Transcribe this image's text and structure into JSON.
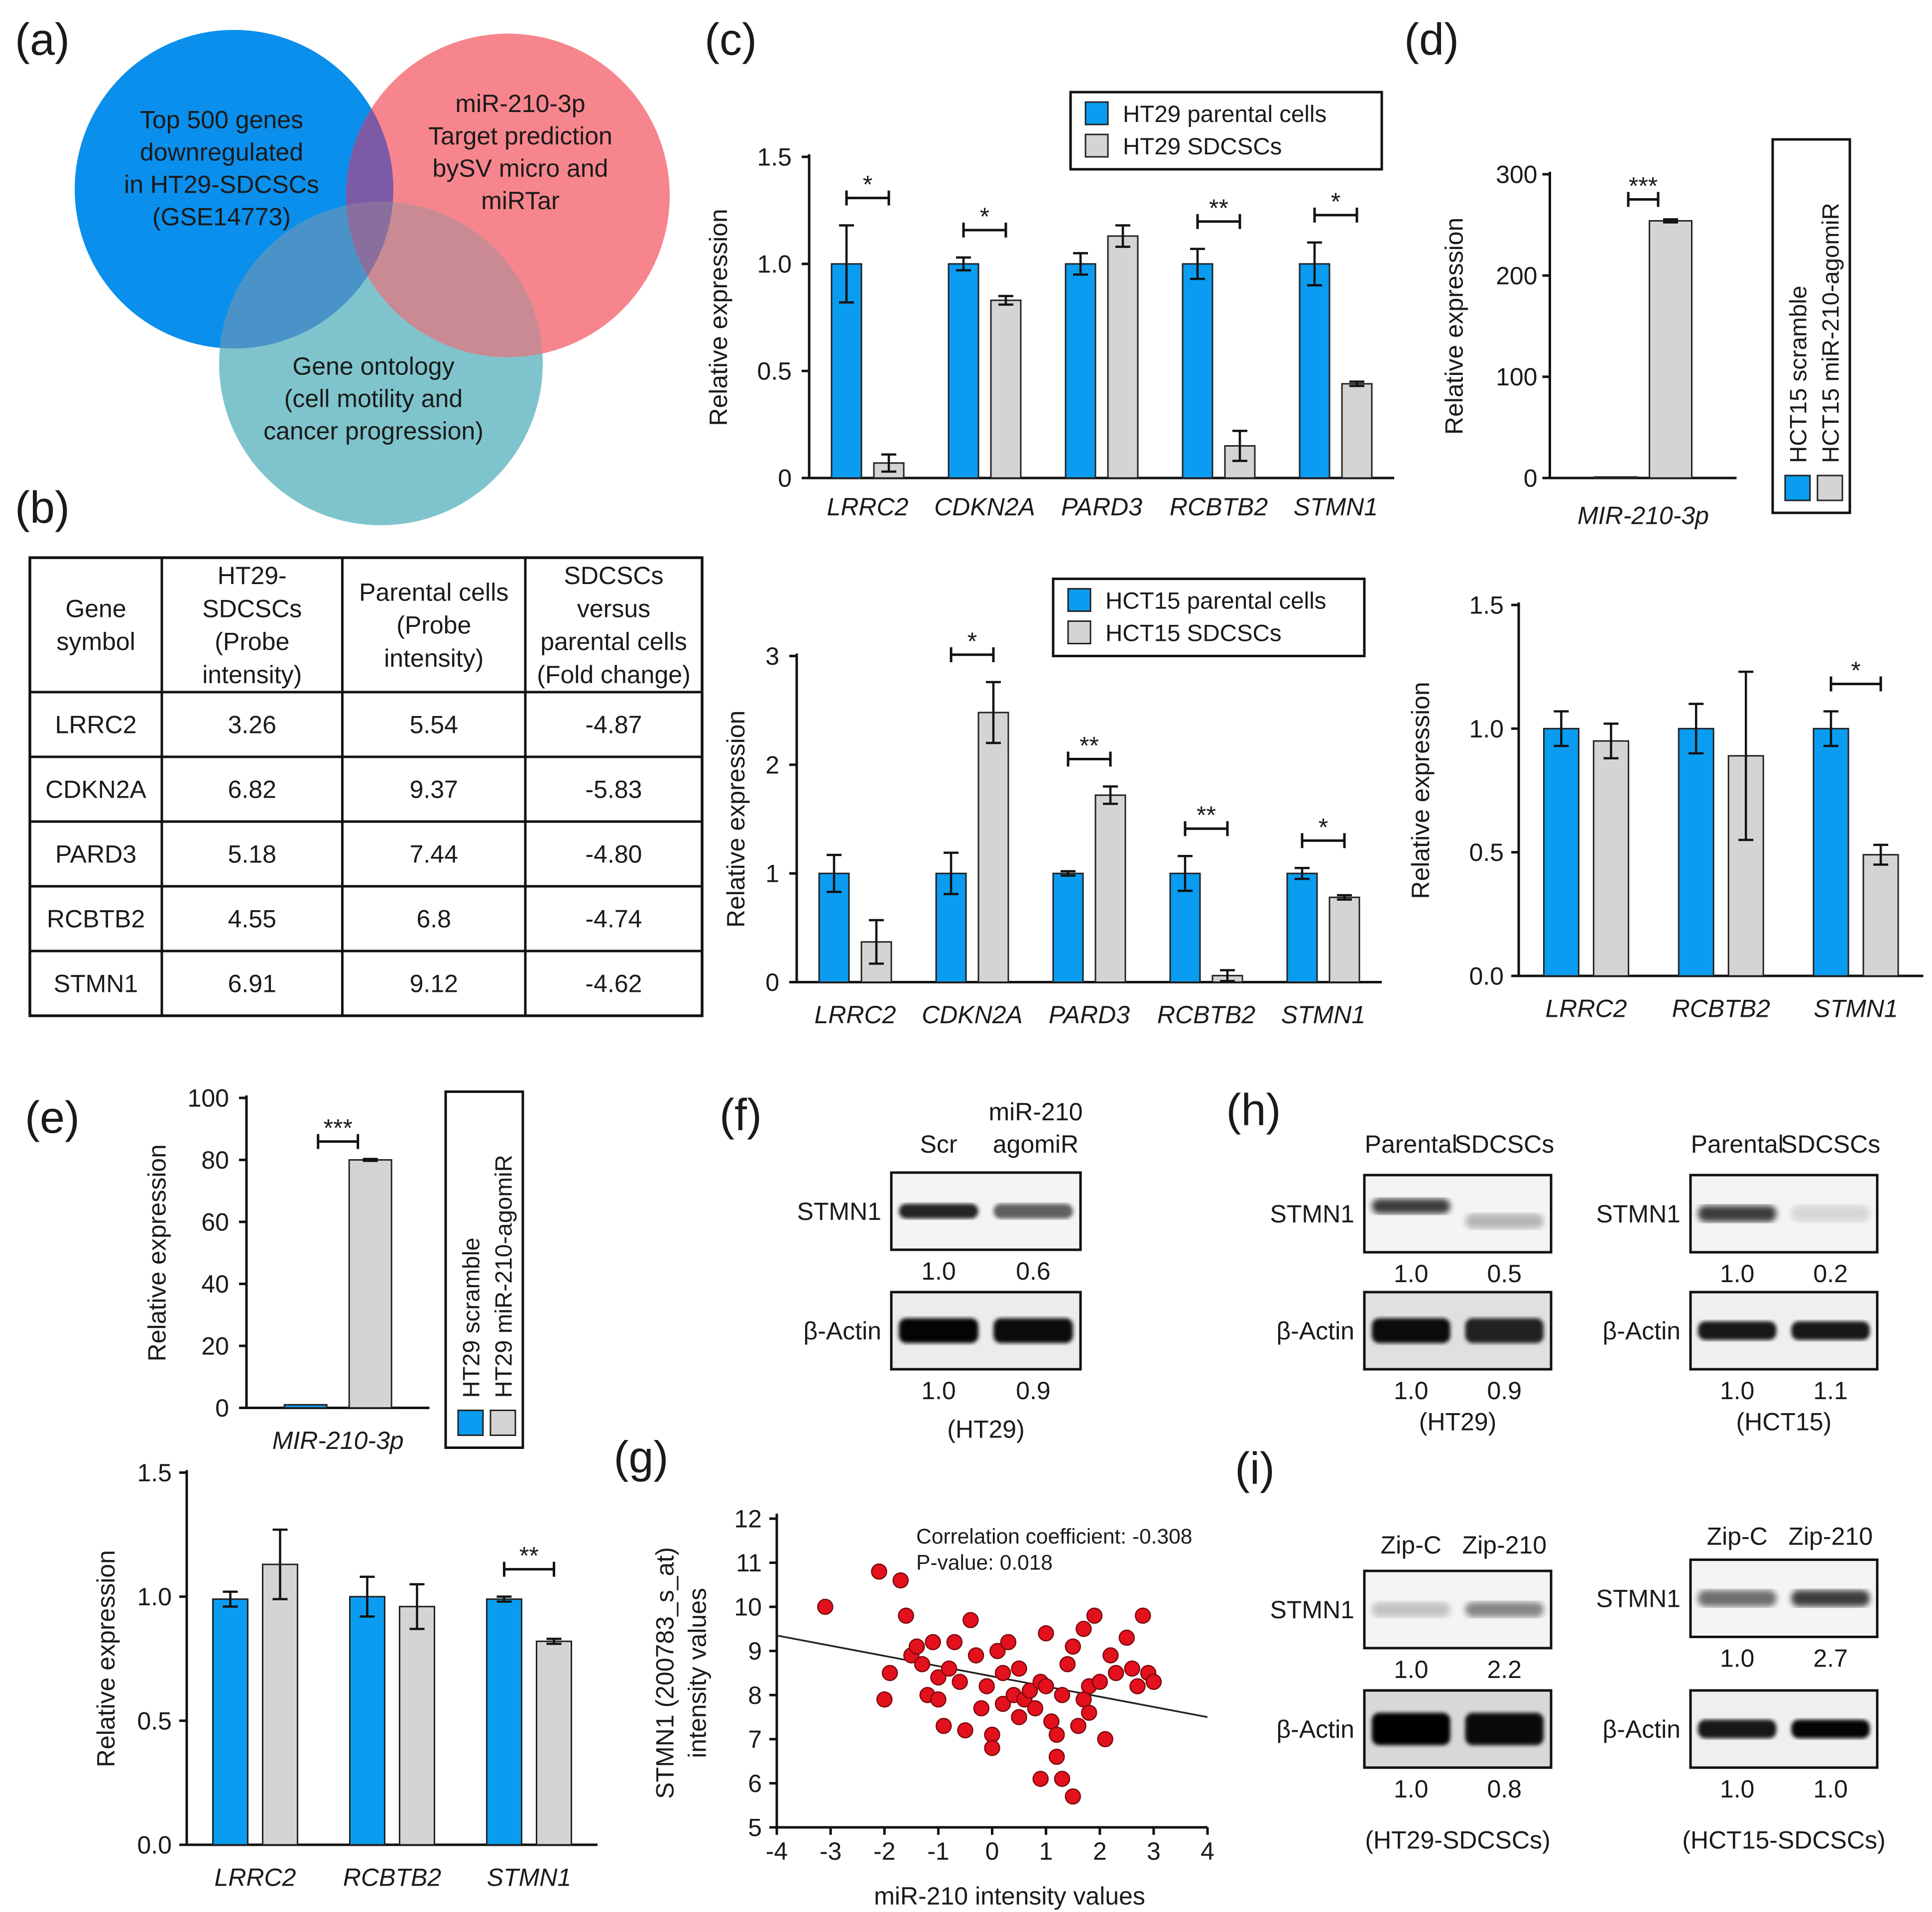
{
  "colors": {
    "blue": "#0a9cf0",
    "gray": "#d4d4d4",
    "red": "#e3111e",
    "venn_blue": "#0a8fec",
    "venn_pink": "#f7858d",
    "venn_teal": "#7fc4cc",
    "venn_purple": "#7d5aa6",
    "venn_darkpink": "#c98a93"
  },
  "panels": {
    "a": {
      "letter": "(a)",
      "circles": [
        {
          "lines": [
            "Top 500 genes",
            "downregulated",
            "in HT29-SDCSCs",
            "(GSE14773)"
          ]
        },
        {
          "lines": [
            "miR-210-3p",
            "Target prediction",
            "bySV micro and",
            "miRTar"
          ]
        },
        {
          "lines": [
            "Gene ontology",
            "(cell motility and",
            "cancer progression)"
          ]
        }
      ]
    },
    "b": {
      "letter": "(b)",
      "headers": [
        [
          "Gene",
          "symbol"
        ],
        [
          "HT29-",
          "SDCSCs",
          "(Probe",
          "intensity)"
        ],
        [
          "Parental cells",
          "(Probe",
          "intensity)"
        ],
        [
          "SDCSCs",
          "versus",
          "parental cells",
          "(Fold change)"
        ]
      ],
      "rows": [
        [
          "LRRC2",
          "3.26",
          "5.54",
          "-4.87"
        ],
        [
          "CDKN2A",
          "6.82",
          "9.37",
          "-5.83"
        ],
        [
          "PARD3",
          "5.18",
          "7.44",
          "-4.80"
        ],
        [
          "RCBTB2",
          "4.55",
          "6.8",
          "-4.74"
        ],
        [
          "STMN1",
          "6.91",
          "9.12",
          "-4.62"
        ]
      ]
    },
    "c": {
      "letter": "(c)"
    },
    "d": {
      "letter": "(d)"
    },
    "e": {
      "letter": "(e)"
    },
    "f": {
      "letter": "(f)",
      "col1": "Scr",
      "col2a": "miR-210",
      "col2b": "agomiR",
      "row1": "STMN1",
      "row1_vals": [
        "1.0",
        "0.6"
      ],
      "row2": "β-Actin",
      "row2_vals": [
        "1.0",
        "0.9"
      ],
      "cell": "(HT29)"
    },
    "g": {
      "letter": "(g)"
    },
    "h": {
      "letter": "(h)",
      "left": {
        "col1": "Parental",
        "col2": "SDCSCs",
        "row1": "STMN1",
        "row1_vals": [
          "1.0",
          "0.5"
        ],
        "row2": "β-Actin",
        "row2_vals": [
          "1.0",
          "0.9"
        ],
        "cell": "(HT29)"
      },
      "right": {
        "col1": "Parental",
        "col2": "SDCSCs",
        "row1": "STMN1",
        "row1_vals": [
          "1.0",
          "0.2"
        ],
        "row2": "β-Actin",
        "row2_vals": [
          "1.0",
          "1.1"
        ],
        "cell": "(HCT15)"
      }
    },
    "i": {
      "letter": "(i)",
      "left": {
        "col1": "Zip-C",
        "col2": "Zip-210",
        "row1": "STMN1",
        "row1_vals": [
          "1.0",
          "2.2"
        ],
        "row2": "β-Actin",
        "row2_vals": [
          "1.0",
          "0.8"
        ],
        "cell": "(HT29-SDCSCs)"
      },
      "right": {
        "col1": "Zip-C",
        "col2": "Zip-210",
        "row1": "STMN1",
        "row1_vals": [
          "1.0",
          "2.7"
        ],
        "row2": "β-Actin",
        "row2_vals": [
          "1.0",
          "1.0"
        ],
        "cell": "(HCT15-SDCSCs)"
      }
    }
  },
  "chart_data": [
    {
      "id": "c_top",
      "type": "bar",
      "ylabel": "Relative expression",
      "ylim": [
        0,
        1.5
      ],
      "yticks": [
        0,
        0.5,
        1.0,
        1.5
      ],
      "ytick_labels": [
        "0",
        "0.5",
        "1.0",
        "1.5"
      ],
      "categories": [
        "LRRC2",
        "CDKN2A",
        "PARD3",
        "RCBTB2",
        "STMN1"
      ],
      "series": [
        {
          "name": "HT29 parental cells",
          "color": "blue",
          "values": [
            1.0,
            1.0,
            1.0,
            1.0,
            1.0
          ],
          "errors": [
            0.18,
            0.03,
            0.05,
            0.07,
            0.1
          ]
        },
        {
          "name": "HT29 SDCSCs",
          "color": "gray",
          "values": [
            0.07,
            0.83,
            1.13,
            0.15,
            0.44
          ],
          "errors": [
            0.04,
            0.02,
            0.05,
            0.07,
            0.01
          ]
        }
      ],
      "significance": [
        "*",
        "*",
        "",
        "**",
        "*"
      ]
    },
    {
      "id": "c_bottom",
      "type": "bar",
      "ylabel": "Relative expression",
      "ylim": [
        0,
        3
      ],
      "yticks": [
        0,
        1,
        2,
        3
      ],
      "ytick_labels": [
        "0",
        "1",
        "2",
        "3"
      ],
      "categories": [
        "LRRC2",
        "CDKN2A",
        "PARD3",
        "RCBTB2",
        "STMN1"
      ],
      "series": [
        {
          "name": "HCT15 parental cells",
          "color": "blue",
          "values": [
            1.0,
            1.0,
            1.0,
            1.0,
            1.0
          ],
          "errors": [
            0.17,
            0.19,
            0.02,
            0.16,
            0.05
          ]
        },
        {
          "name": "HCT15 SDCSCs",
          "color": "gray",
          "values": [
            0.37,
            2.48,
            1.72,
            0.06,
            0.78
          ],
          "errors": [
            0.2,
            0.28,
            0.08,
            0.05,
            0.02
          ]
        }
      ],
      "significance": [
        "",
        "*",
        "**",
        "**",
        "*"
      ]
    },
    {
      "id": "d_top",
      "type": "bar",
      "ylabel": "Relative expression",
      "ylim": [
        0,
        300
      ],
      "yticks": [
        0,
        100,
        200,
        300
      ],
      "ytick_labels": [
        "0",
        "100",
        "200",
        "300"
      ],
      "categories": [
        "MIR-210-3p"
      ],
      "series": [
        {
          "name": "HCT15 scramble",
          "color": "blue",
          "values": [
            1
          ],
          "errors": [
            0
          ]
        },
        {
          "name": "HCT15 miR-210-agomiR",
          "color": "gray",
          "values": [
            254
          ],
          "errors": [
            1.5
          ]
        }
      ],
      "significance": [
        "***"
      ]
    },
    {
      "id": "d_bottom",
      "type": "bar",
      "ylabel": "Relative expression",
      "ylim": [
        0,
        1.5
      ],
      "yticks": [
        0,
        0.5,
        1.0,
        1.5
      ],
      "ytick_labels": [
        "0.0",
        "0.5",
        "1.0",
        "1.5"
      ],
      "categories": [
        "LRRC2",
        "RCBTB2",
        "STMN1"
      ],
      "series": [
        {
          "name": "HCT15 scramble",
          "color": "blue",
          "values": [
            1.0,
            1.0,
            1.0
          ],
          "errors": [
            0.07,
            0.1,
            0.07
          ]
        },
        {
          "name": "HCT15 miR-210-agomiR",
          "color": "gray",
          "values": [
            0.95,
            0.89,
            0.49
          ],
          "errors": [
            0.07,
            0.34,
            0.04
          ]
        }
      ],
      "significance": [
        "",
        "",
        "*"
      ]
    },
    {
      "id": "e_top",
      "type": "bar",
      "ylabel": "Relative expression",
      "ylim": [
        0,
        100
      ],
      "yticks": [
        0,
        20,
        40,
        60,
        80,
        100
      ],
      "ytick_labels": [
        "0",
        "20",
        "40",
        "60",
        "80",
        "100"
      ],
      "categories": [
        "MIR-210-3p"
      ],
      "series": [
        {
          "name": "HT29 scramble",
          "color": "blue",
          "values": [
            1
          ],
          "errors": [
            0
          ]
        },
        {
          "name": "HT29 miR-210-agomiR",
          "color": "gray",
          "values": [
            80
          ],
          "errors": [
            0.3
          ]
        }
      ],
      "significance": [
        "***"
      ]
    },
    {
      "id": "e_bottom",
      "type": "bar",
      "ylabel": "Relative expression",
      "ylim": [
        0,
        1.5
      ],
      "yticks": [
        0,
        0.5,
        1.0,
        1.5
      ],
      "ytick_labels": [
        "0.0",
        "0.5",
        "1.0",
        "1.5"
      ],
      "categories": [
        "LRRC2",
        "RCBTB2",
        "STMN1"
      ],
      "series": [
        {
          "name": "HT29 scramble",
          "color": "blue",
          "values": [
            0.99,
            1.0,
            0.99
          ],
          "errors": [
            0.03,
            0.08,
            0.01
          ]
        },
        {
          "name": "HT29 miR-210-agomiR",
          "color": "gray",
          "values": [
            1.13,
            0.96,
            0.82
          ],
          "errors": [
            0.14,
            0.09,
            0.01
          ]
        }
      ],
      "significance": [
        "",
        "",
        "**"
      ]
    },
    {
      "id": "g_scatter",
      "type": "scatter",
      "xlabel": "miR-210 intensity values",
      "ylabel": "STMN1 (200783_s_at)",
      "ylabel2": "intensity values",
      "xlim": [
        -4,
        4
      ],
      "ylim": [
        5,
        12
      ],
      "xticks": [
        -4,
        -3,
        -2,
        -1,
        0,
        1,
        2,
        3,
        4
      ],
      "yticks": [
        5,
        6,
        7,
        8,
        9,
        10,
        11,
        12
      ],
      "annotation": [
        "Correlation coefficient: -0.308",
        "P-value: 0.018"
      ],
      "fit_line": {
        "x": [
          -4,
          4
        ],
        "y": [
          9.35,
          7.5
        ]
      },
      "points": [
        [
          -3.1,
          10.0
        ],
        [
          -2.1,
          10.8
        ],
        [
          -1.7,
          10.6
        ],
        [
          -1.6,
          9.8
        ],
        [
          -1.9,
          8.5
        ],
        [
          -2.0,
          7.9
        ],
        [
          -1.5,
          8.9
        ],
        [
          -1.4,
          9.1
        ],
        [
          -1.3,
          8.7
        ],
        [
          -1.2,
          8.0
        ],
        [
          -1.1,
          9.2
        ],
        [
          -1.0,
          8.4
        ],
        [
          -1.0,
          7.9
        ],
        [
          -0.8,
          8.6
        ],
        [
          -0.7,
          9.2
        ],
        [
          -0.6,
          8.3
        ],
        [
          -0.5,
          7.2
        ],
        [
          -0.4,
          9.7
        ],
        [
          -0.3,
          8.9
        ],
        [
          -0.2,
          7.7
        ],
        [
          -0.1,
          8.2
        ],
        [
          0.0,
          7.1
        ],
        [
          0.0,
          6.8
        ],
        [
          0.1,
          9.0
        ],
        [
          0.2,
          7.8
        ],
        [
          0.2,
          8.5
        ],
        [
          0.3,
          9.2
        ],
        [
          0.4,
          8.0
        ],
        [
          0.5,
          7.5
        ],
        [
          0.5,
          8.6
        ],
        [
          0.6,
          7.9
        ],
        [
          0.7,
          8.1
        ],
        [
          0.8,
          7.7
        ],
        [
          0.9,
          8.3
        ],
        [
          1.0,
          9.4
        ],
        [
          1.0,
          8.2
        ],
        [
          1.1,
          7.4
        ],
        [
          1.2,
          6.6
        ],
        [
          1.3,
          6.1
        ],
        [
          1.3,
          8.0
        ],
        [
          1.4,
          8.7
        ],
        [
          1.5,
          5.7
        ],
        [
          1.5,
          9.1
        ],
        [
          1.6,
          7.3
        ],
        [
          1.7,
          7.9
        ],
        [
          1.7,
          9.5
        ],
        [
          1.8,
          7.6
        ],
        [
          1.8,
          8.2
        ],
        [
          1.9,
          9.8
        ],
        [
          2.0,
          8.3
        ],
        [
          2.1,
          7.0
        ],
        [
          2.2,
          8.9
        ],
        [
          2.3,
          8.5
        ],
        [
          2.5,
          9.3
        ],
        [
          2.6,
          8.6
        ],
        [
          2.7,
          8.2
        ],
        [
          2.8,
          9.8
        ],
        [
          2.9,
          8.5
        ],
        [
          3.0,
          8.3
        ],
        [
          -0.9,
          7.3
        ],
        [
          0.9,
          6.1
        ],
        [
          1.2,
          7.1
        ]
      ]
    }
  ]
}
